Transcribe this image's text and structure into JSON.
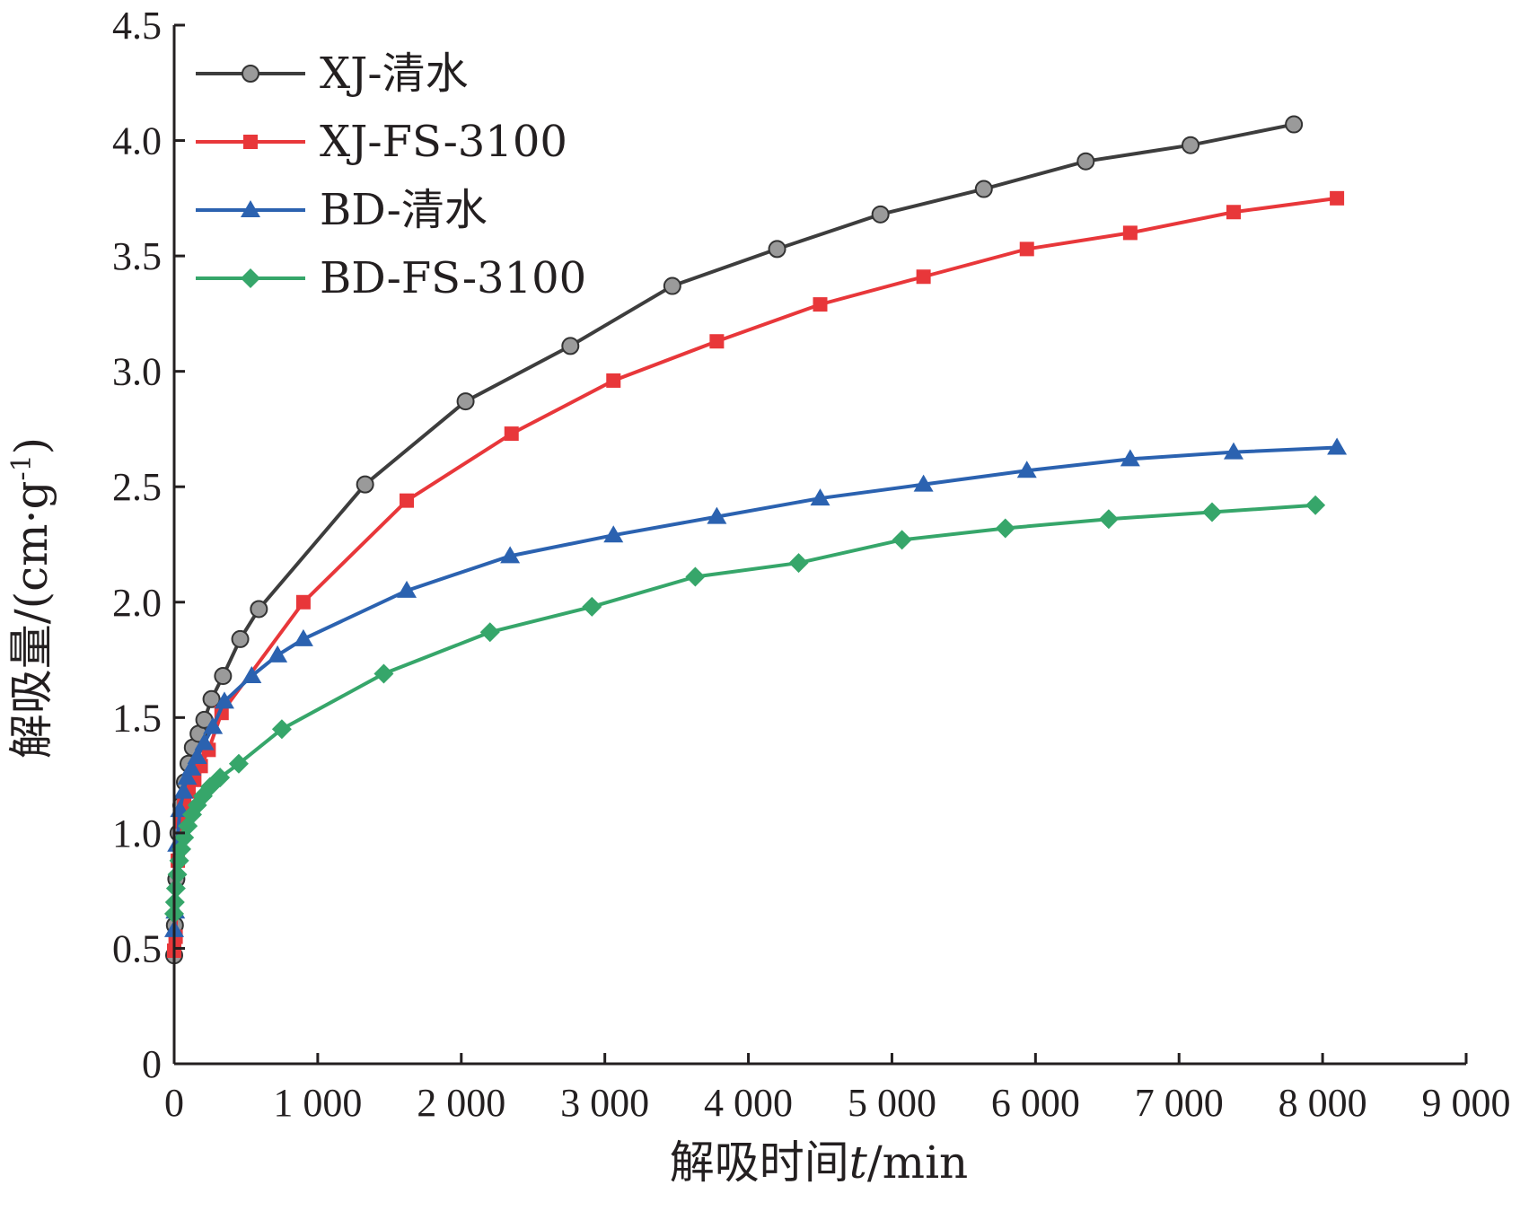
{
  "chart_data": {
    "type": "line",
    "xlabel": "解吸时间t/min",
    "xlabel_main": "解吸时间",
    "xlabel_var": "t",
    "xlabel_unit": "/min",
    "ylabel": "解吸量/(cm·g-1)",
    "ylabel_main": "解吸量/(cm·g",
    "ylabel_sup": "-1",
    "ylabel_close": ")",
    "xlim": [
      0,
      9000
    ],
    "ylim": [
      0,
      4.5
    ],
    "x_ticks": [
      0,
      1000,
      2000,
      3000,
      4000,
      5000,
      6000,
      7000,
      8000,
      9000
    ],
    "x_tick_labels": [
      "0",
      "1 000",
      "2 000",
      "3 000",
      "4 000",
      "5 000",
      "6 000",
      "7 000",
      "8 000",
      "9 000"
    ],
    "y_ticks": [
      0,
      0.5,
      1.0,
      1.5,
      2.0,
      2.5,
      3.0,
      3.5,
      4.0,
      4.5
    ],
    "y_tick_labels": [
      "0",
      "0.5",
      "1.0",
      "1.5",
      "2.0",
      "2.5",
      "3.0",
      "3.5",
      "4.0",
      "4.5"
    ],
    "grid": false,
    "legend_position": "top-left",
    "series": [
      {
        "name": "XJ-清水",
        "color": "#3d3d3d",
        "marker": "circle",
        "x": [
          0,
          5,
          15,
          30,
          50,
          75,
          100,
          130,
          170,
          210,
          260,
          340,
          460,
          590,
          1330,
          2030,
          2760,
          3470,
          4200,
          4920,
          5640,
          6350,
          7080,
          7800
        ],
        "y": [
          0.47,
          0.6,
          0.8,
          1.0,
          1.12,
          1.22,
          1.3,
          1.37,
          1.43,
          1.49,
          1.58,
          1.68,
          1.84,
          1.97,
          2.51,
          2.87,
          3.11,
          3.37,
          3.53,
          3.68,
          3.79,
          3.91,
          3.98,
          4.07
        ]
      },
      {
        "name": "XJ-FS-3100",
        "color": "#e8373a",
        "marker": "square",
        "x": [
          0,
          10,
          25,
          45,
          70,
          100,
          140,
          185,
          240,
          330,
          900,
          1620,
          2350,
          3060,
          3780,
          4500,
          5220,
          5940,
          6660,
          7380,
          8100
        ],
        "y": [
          0.49,
          0.55,
          0.88,
          1.05,
          1.12,
          1.18,
          1.23,
          1.29,
          1.36,
          1.52,
          2.0,
          2.44,
          2.73,
          2.96,
          3.13,
          3.29,
          3.41,
          3.53,
          3.6,
          3.69,
          3.75
        ]
      },
      {
        "name": "BD-清水",
        "color": "#2b62b0",
        "marker": "triangle",
        "x": [
          0,
          8,
          20,
          40,
          65,
          90,
          120,
          160,
          210,
          270,
          350,
          540,
          720,
          900,
          1620,
          2340,
          3060,
          3780,
          4500,
          5220,
          5940,
          6660,
          7380,
          8100
        ],
        "y": [
          0.58,
          0.66,
          0.95,
          1.1,
          1.18,
          1.24,
          1.28,
          1.33,
          1.39,
          1.46,
          1.57,
          1.68,
          1.77,
          1.84,
          2.05,
          2.2,
          2.29,
          2.37,
          2.45,
          2.51,
          2.57,
          2.62,
          2.65,
          2.67
        ]
      },
      {
        "name": "BD-FS-3100",
        "color": "#36a66a",
        "marker": "diamond",
        "x": [
          0,
          5,
          12,
          22,
          35,
          50,
          70,
          95,
          125,
          160,
          200,
          250,
          320,
          450,
          750,
          1460,
          2200,
          2910,
          3630,
          4350,
          5070,
          5790,
          6510,
          7230,
          7950
        ],
        "y": [
          0.65,
          0.7,
          0.76,
          0.82,
          0.88,
          0.93,
          0.98,
          1.03,
          1.08,
          1.12,
          1.16,
          1.2,
          1.24,
          1.3,
          1.45,
          1.69,
          1.87,
          1.98,
          2.11,
          2.17,
          2.27,
          2.32,
          2.36,
          2.39,
          2.42
        ]
      }
    ]
  }
}
